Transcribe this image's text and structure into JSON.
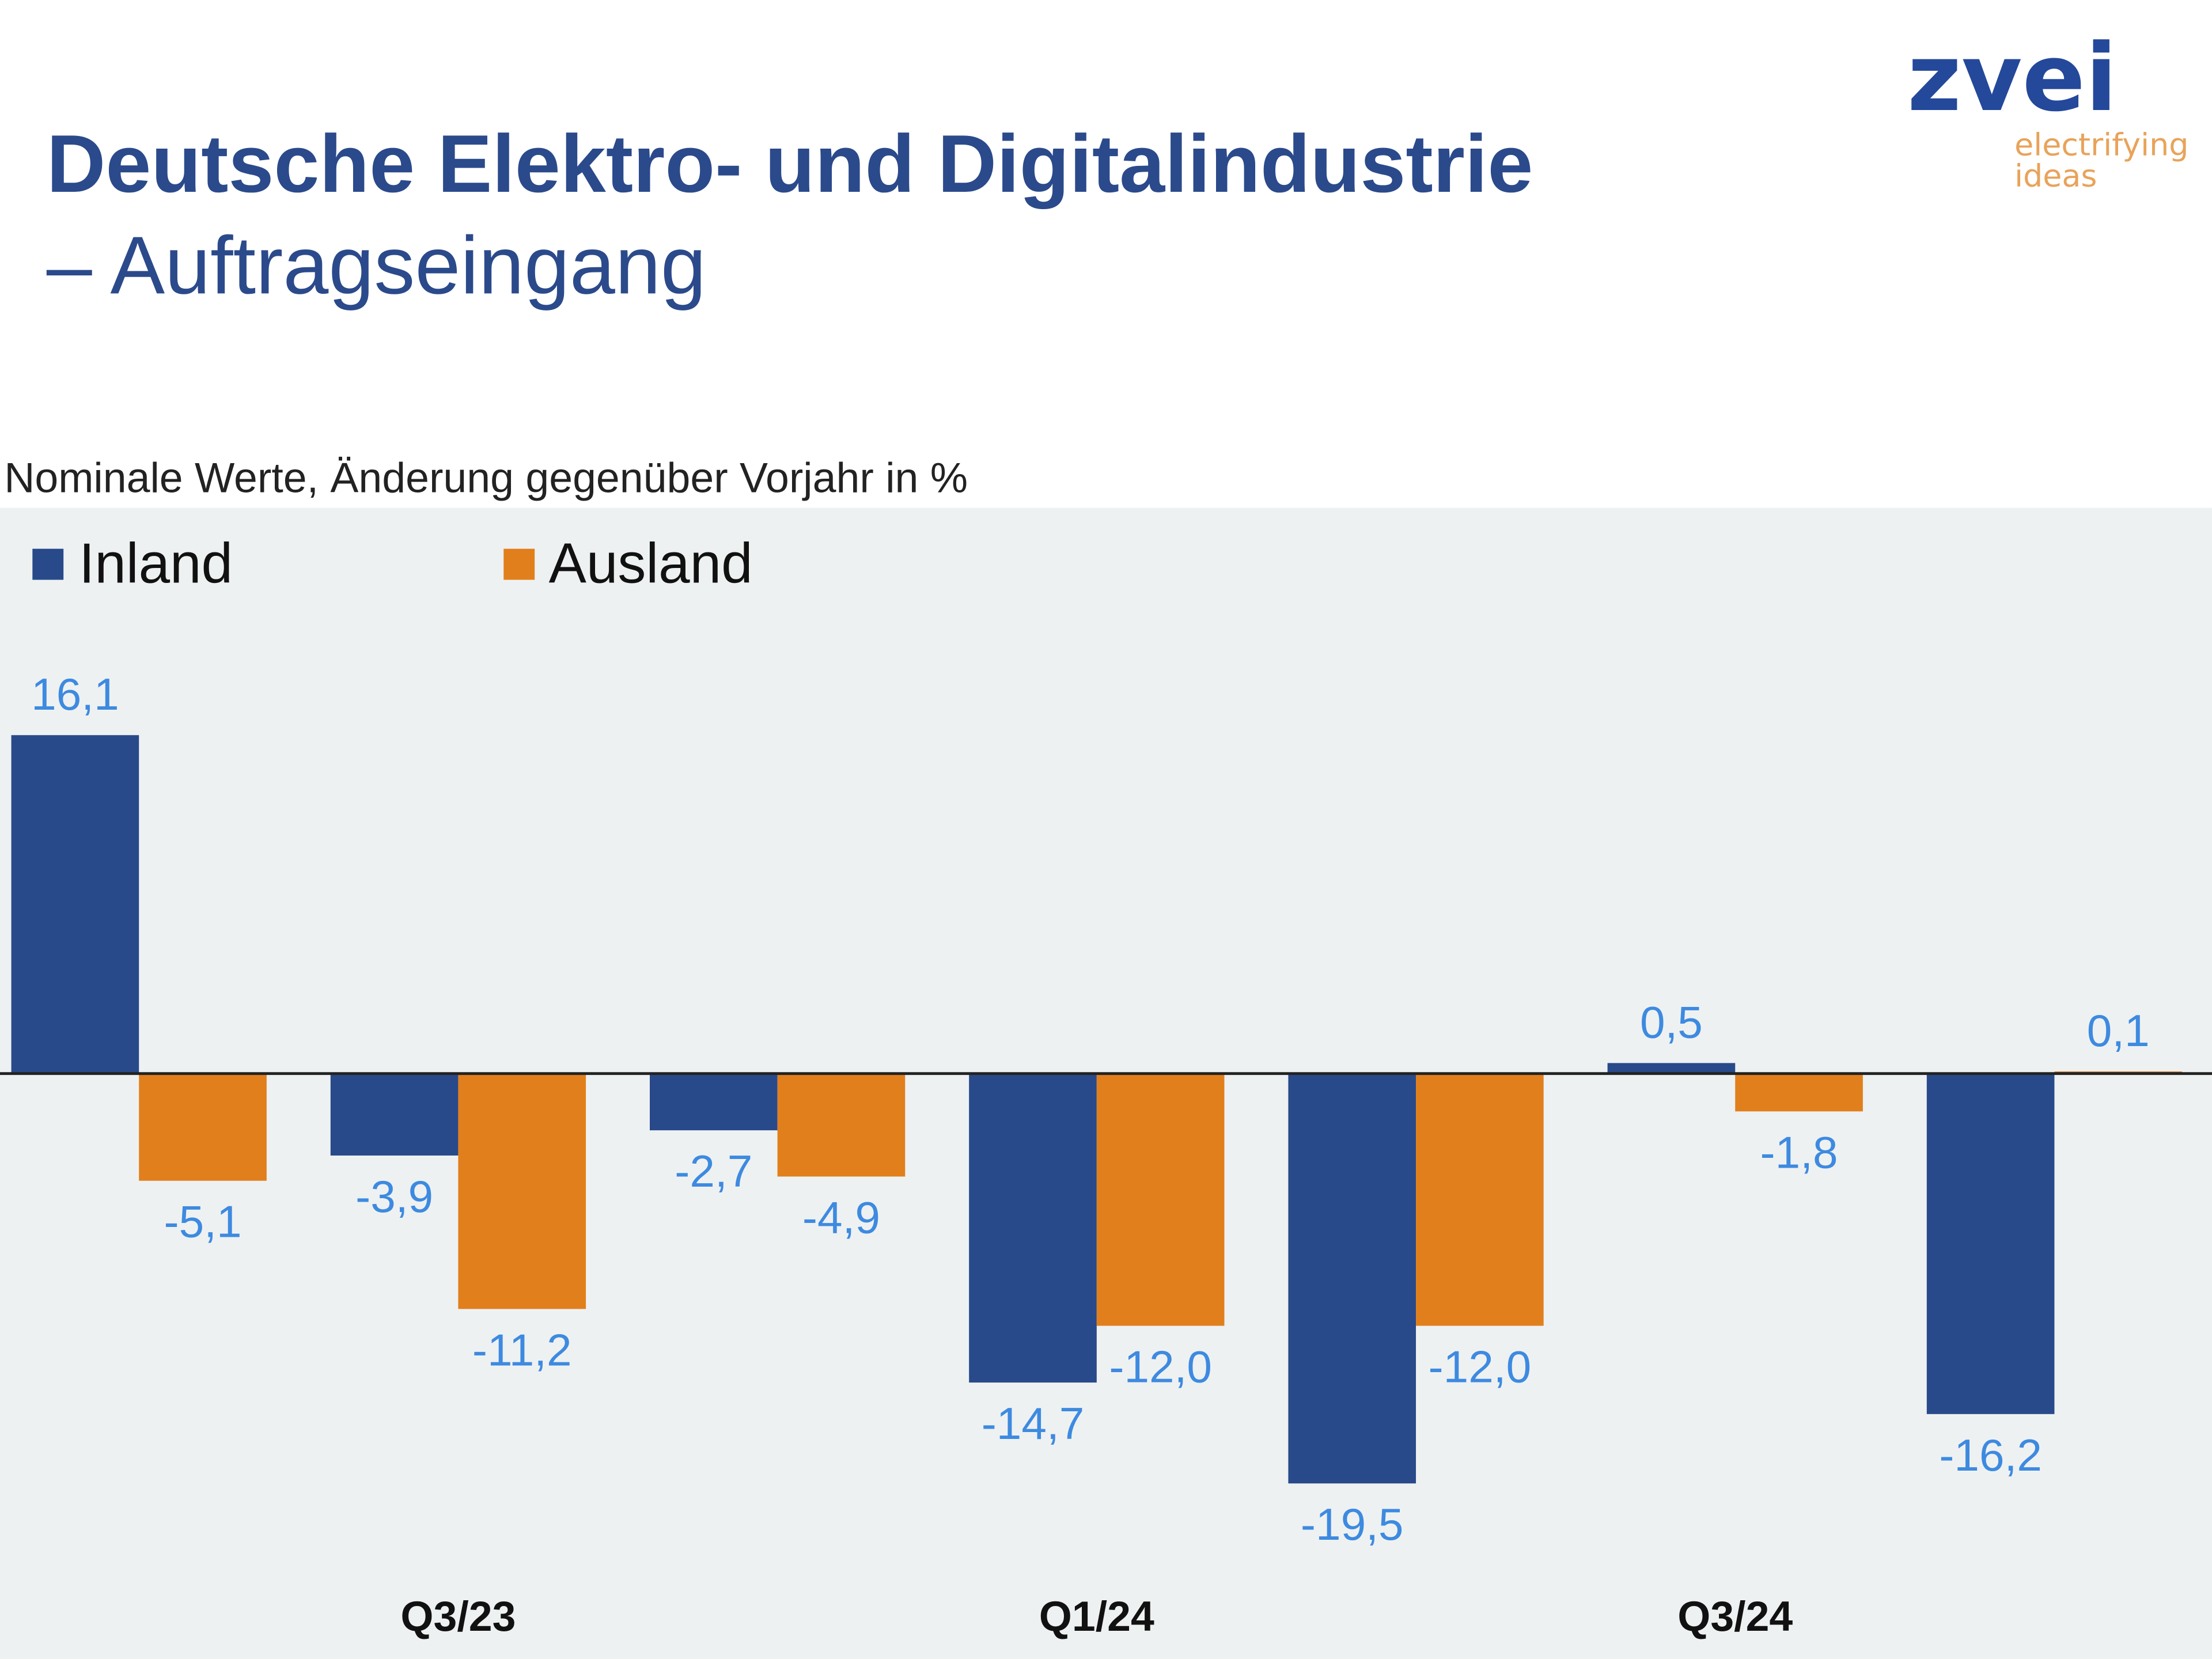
{
  "header": {
    "title": "Deutsche Elektro- und Digitalindustrie",
    "subtitle": "– Auftragseingang"
  },
  "logo": {
    "brand": "zvei",
    "tagline_1": "electrifying",
    "tagline_2": "ideas"
  },
  "note": "Nominale Werte, Änderung gegenüber Vorjahr in %",
  "colors": {
    "inland": "#284a8a",
    "ausland": "#e17f1c",
    "labels": "#3d8ae0",
    "panel": "#eef1f2",
    "title": "#2b4a8b"
  },
  "chart_data": {
    "type": "bar",
    "title": "",
    "xlabel": "",
    "ylabel": "",
    "categories": [
      "",
      "Q3/23",
      "",
      "Q1/24",
      "",
      "Q3/24",
      ""
    ],
    "series": [
      {
        "name": "Inland",
        "values": [
          16.1,
          -3.9,
          -2.7,
          -14.7,
          -19.5,
          0.5,
          -16.2
        ],
        "labels": [
          "16,1",
          "-3,9",
          "-2,7",
          "-14,7",
          "-19,5",
          "0,5",
          "-16,2"
        ]
      },
      {
        "name": "Ausland",
        "values": [
          -5.1,
          -11.2,
          -4.9,
          -12.0,
          -12.0,
          -1.8,
          0.1
        ],
        "labels": [
          "-5,1",
          "-11,2",
          "-4,9",
          "-12,0",
          "-12,0",
          "-1,8",
          "0,1"
        ]
      }
    ],
    "ylim": [
      -20,
      17
    ],
    "grid": false,
    "legend": "top-left",
    "data_labels": true
  }
}
